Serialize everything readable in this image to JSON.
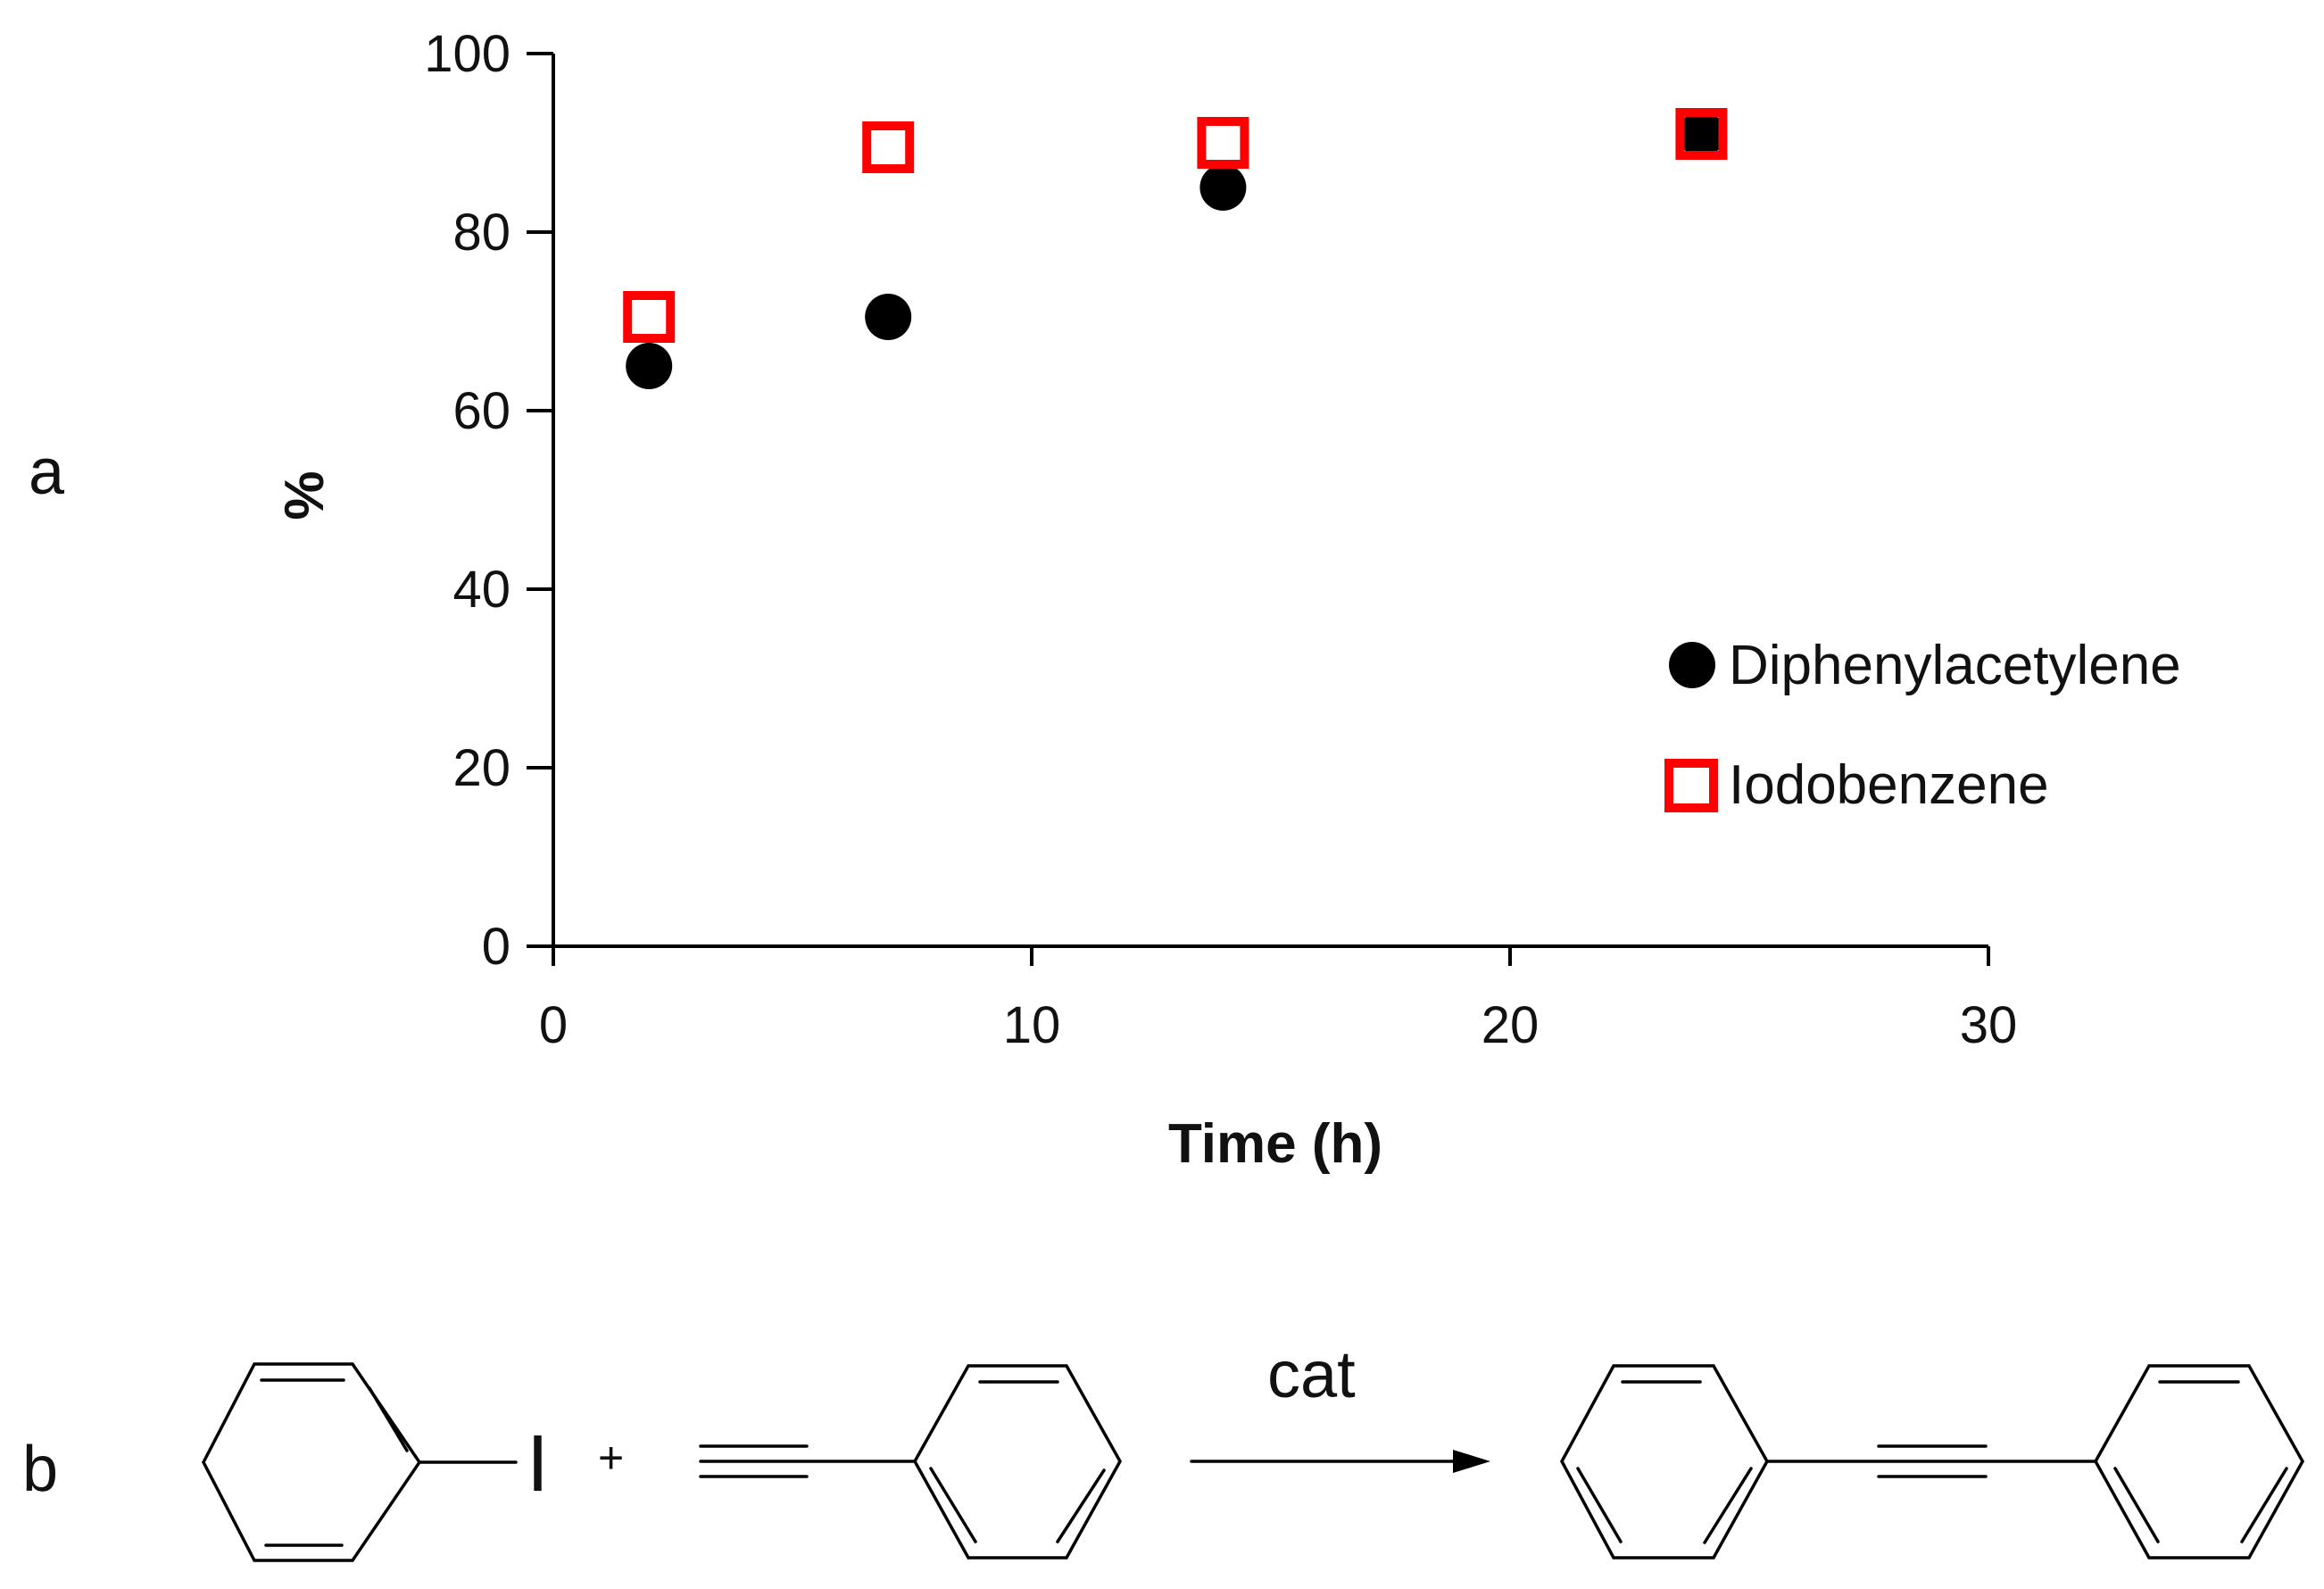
{
  "panels": {
    "a": "a",
    "b": "b"
  },
  "chart_data": {
    "type": "scatter",
    "title": "",
    "xlabel": "Time (h)",
    "ylabel": "%",
    "xlim": [
      0,
      30
    ],
    "ylim": [
      0,
      100
    ],
    "xticks": [
      0,
      10,
      20,
      30
    ],
    "yticks": [
      0,
      20,
      40,
      60,
      80,
      100
    ],
    "grid": false,
    "legend_position": "right-middle",
    "series": [
      {
        "name": "Diphenylacetylene",
        "marker": "filled-circle",
        "color": "#000000",
        "x": [
          2,
          7,
          14,
          24
        ],
        "y": [
          65,
          70.5,
          85,
          91
        ]
      },
      {
        "name": "Iodobenzene",
        "marker": "open-square",
        "color": "#ff0000",
        "x": [
          2,
          7,
          14,
          24
        ],
        "y": [
          70.5,
          89.5,
          90,
          91
        ]
      }
    ]
  },
  "reaction": {
    "iodine_symbol": "I",
    "plus": "+",
    "catalyst_label": "cat"
  }
}
